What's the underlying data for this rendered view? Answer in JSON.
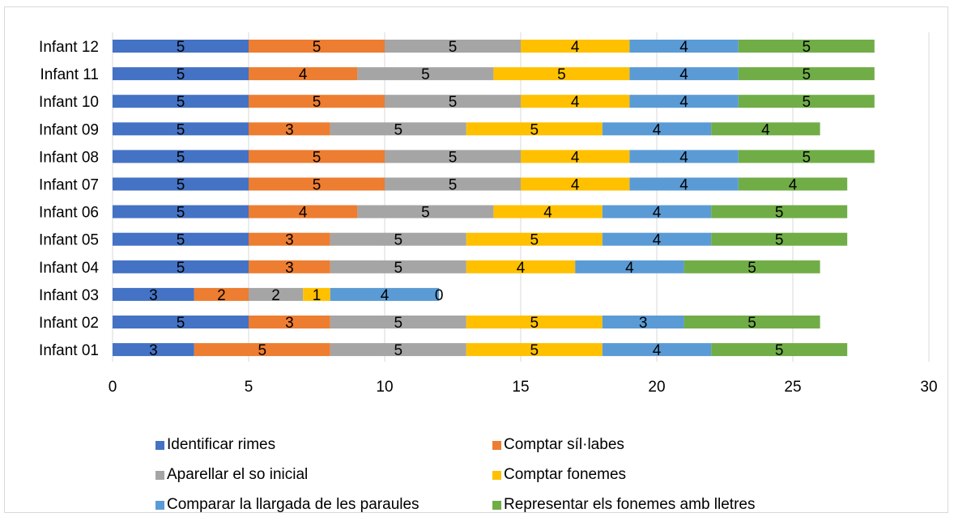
{
  "chart_data": {
    "type": "bar",
    "orientation": "horizontal",
    "stacked": true,
    "categories": [
      "Infant 12",
      "Infant 11",
      "Infant 10",
      "Infant 09",
      "Infant 08",
      "Infant 07",
      "Infant 06",
      "Infant 05",
      "Infant 04",
      "Infant 03",
      "Infant 02",
      "Infant 01"
    ],
    "series": [
      {
        "name": "Identificar rimes",
        "color": "#4472C4",
        "values": [
          5,
          5,
          5,
          5,
          5,
          5,
          5,
          5,
          5,
          3,
          5,
          3
        ]
      },
      {
        "name": "Comptar síl·labes",
        "color": "#ED7D31",
        "values": [
          5,
          4,
          5,
          3,
          5,
          5,
          4,
          3,
          3,
          2,
          3,
          5
        ]
      },
      {
        "name": "Aparellar el so inicial",
        "color": "#A5A5A5",
        "values": [
          5,
          5,
          5,
          5,
          5,
          5,
          5,
          5,
          5,
          2,
          5,
          5
        ]
      },
      {
        "name": "Comptar fonemes",
        "color": "#FFC000",
        "values": [
          4,
          5,
          4,
          5,
          4,
          4,
          4,
          5,
          4,
          1,
          5,
          5
        ]
      },
      {
        "name": "Comparar la llargada de les paraules",
        "color": "#5B9BD5",
        "values": [
          4,
          4,
          4,
          4,
          4,
          4,
          4,
          4,
          4,
          4,
          3,
          4
        ]
      },
      {
        "name": "Representar els fonemes amb lletres",
        "color": "#70AD47",
        "values": [
          5,
          5,
          5,
          4,
          5,
          4,
          5,
          5,
          5,
          0,
          5,
          5
        ]
      }
    ],
    "xlim": [
      0,
      30
    ],
    "xticks": [
      "0",
      "5",
      "10",
      "15",
      "20",
      "25",
      "30"
    ],
    "grid": "vertical",
    "legend_position": "bottom",
    "title": "",
    "xlabel": "",
    "ylabel": ""
  }
}
